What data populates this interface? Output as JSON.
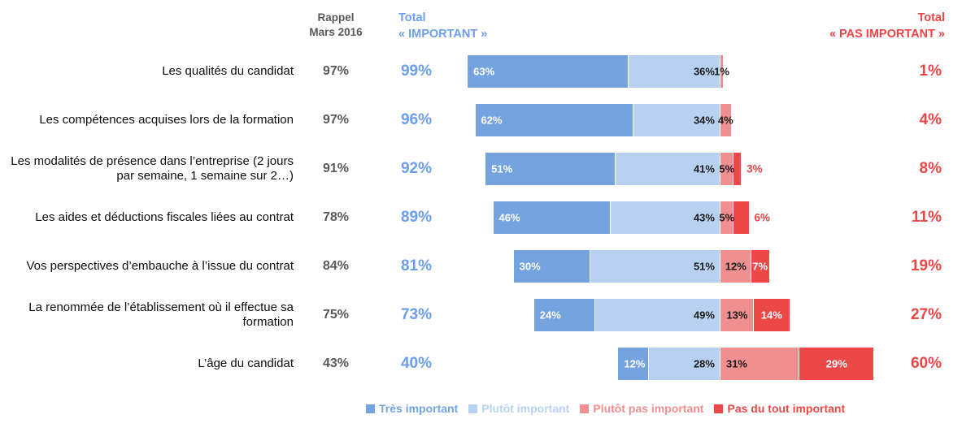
{
  "header": {
    "rappel": {
      "line1": "Rappel",
      "line2": "Mars 2016"
    },
    "total_important": {
      "line1": "Total",
      "line2": "« IMPORTANT »"
    },
    "total_pas_important": {
      "line1": "Total",
      "line2": "« PAS IMPORTANT »"
    }
  },
  "colors": {
    "tres_important": "#75A3DF",
    "plutot_important": "#B9D1F1",
    "plutot_pas_important": "#F08F8F",
    "pas_du_tout_important": "#EC4848",
    "accent_blue": "#6D9EEB",
    "accent_red": "#EE4545",
    "rappel_gray": "#595959",
    "bar_label_dark": "#1a1a1a",
    "bar_label_light": "#ffffff"
  },
  "chart_data": {
    "type": "bar",
    "variant": "horizontal diverging stacked percentage bars",
    "unit": "%",
    "legend_position": "bottom",
    "categories": [
      "Les qualités du candidat",
      "Les compétences acquises lors de la formation",
      "Les modalités de présence dans l’entreprise (2 jours par semaine, 1 semaine sur 2…)",
      "Les aides et déductions fiscales liées au contrat",
      "Vos perspectives d’embauche à l’issue du contrat",
      "La renommée de l’établissement où il effectue sa formation",
      "L’âge du candidat"
    ],
    "series": [
      {
        "name": "Très important",
        "values": [
          63,
          62,
          51,
          46,
          30,
          24,
          12
        ]
      },
      {
        "name": "Plutôt important",
        "values": [
          36,
          34,
          41,
          43,
          51,
          49,
          28
        ]
      },
      {
        "name": "Plutôt pas important",
        "values": [
          1,
          4,
          5,
          5,
          12,
          13,
          31
        ]
      },
      {
        "name": "Pas du tout important",
        "values": [
          0,
          0,
          3,
          6,
          7,
          14,
          29
        ]
      }
    ],
    "rappel_mars_2016": [
      97,
      97,
      91,
      78,
      84,
      75,
      43
    ],
    "total_important": [
      99,
      96,
      92,
      89,
      81,
      73,
      40
    ],
    "total_pas_important": [
      1,
      4,
      8,
      11,
      19,
      27,
      60
    ]
  }
}
